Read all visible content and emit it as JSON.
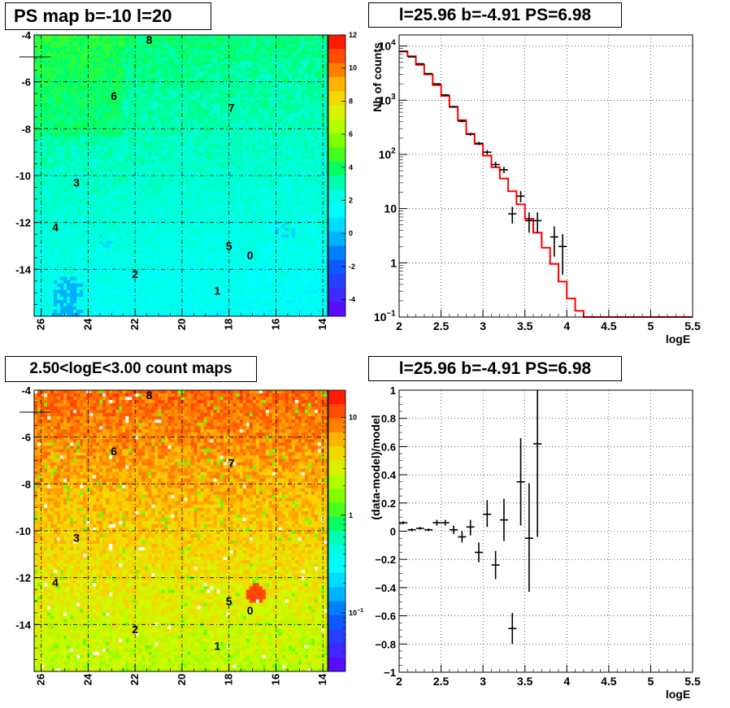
{
  "chart_data": [
    {
      "type": "heatmap",
      "title": "PS map b=-10 l=20",
      "x_ticks": [
        26,
        24,
        22,
        20,
        18,
        16,
        14
      ],
      "y_ticks": [
        -4,
        -6,
        -8,
        -10,
        -12,
        -14
      ],
      "xlim": [
        26.3,
        13.8
      ],
      "ylim": [
        -16,
        -4
      ],
      "colorbar_ticks": [
        12,
        10,
        8,
        6,
        4,
        2,
        0,
        -2,
        -4
      ],
      "colorbar_range": [
        -5,
        12
      ],
      "sources": [
        {
          "label": "8",
          "l": 21.4,
          "b": -4.2
        },
        {
          "label": "6",
          "l": 22.9,
          "b": -6.6
        },
        {
          "label": "7",
          "l": 17.9,
          "b": -7.1
        },
        {
          "label": "3",
          "l": 24.5,
          "b": -10.3
        },
        {
          "label": "4",
          "l": 25.4,
          "b": -12.2
        },
        {
          "label": "5",
          "l": 18.0,
          "b": -13.0
        },
        {
          "label": "0",
          "l": 17.1,
          "b": -13.4
        },
        {
          "label": "2",
          "l": 22.0,
          "b": -14.2
        },
        {
          "label": "1",
          "l": 18.5,
          "b": -14.9
        }
      ],
      "grid": true
    },
    {
      "type": "line",
      "title": "l=25.96 b=-4.91 PS=6.98",
      "xlabel": "logE",
      "ylabel": "Nb of counts",
      "yscale": "log",
      "xlim": [
        2,
        5.5
      ],
      "ylim": [
        0.1,
        16000
      ],
      "x_ticks": [
        2,
        2.5,
        3,
        3.5,
        4,
        4.5,
        5,
        5.5
      ],
      "x_tick_labels": [
        "2",
        "2.5",
        "3",
        "3.5",
        "4",
        "4.5",
        "5",
        "5.5"
      ],
      "y_tick_labels": [
        {
          "value": 10000,
          "base": "10",
          "exp": "4"
        },
        {
          "value": 1000,
          "base": "10",
          "exp": "3"
        },
        {
          "value": 100,
          "base": "10",
          "exp": "2"
        },
        {
          "value": 10,
          "base": "10",
          "exp": ""
        },
        {
          "value": 1,
          "base": "1",
          "exp": ""
        },
        {
          "value": 0.1,
          "base": "10",
          "exp": "−1"
        }
      ],
      "model_color": "#ff0000",
      "model_bin_edges": [
        2.0,
        2.1,
        2.2,
        2.3,
        2.4,
        2.5,
        2.6,
        2.7,
        2.8,
        2.9,
        3.0,
        3.1,
        3.2,
        3.3,
        3.4,
        3.5,
        3.6,
        3.7,
        3.8,
        3.9,
        4.0,
        4.1,
        4.2,
        4.3,
        4.4,
        4.5,
        4.6,
        4.7,
        4.8,
        4.9,
        5.0,
        5.1,
        5.2,
        5.3,
        5.4,
        5.5
      ],
      "model_values": [
        8000,
        6500,
        4500,
        3000,
        1900,
        1200,
        750,
        430,
        240,
        155,
        95,
        58,
        36,
        21,
        12,
        6.5,
        3.6,
        1.9,
        0.95,
        0.45,
        0.22,
        0.13,
        0.1,
        0.1,
        0.1,
        0.1,
        0.1,
        0.1,
        0.1,
        0.1,
        0.1,
        0.1,
        0.1,
        0.1,
        0.1
      ],
      "data_points": [
        {
          "x": 2.05,
          "y": 7900,
          "lo": 7800,
          "hi": 8000
        },
        {
          "x": 2.15,
          "y": 6300,
          "lo": 6200,
          "hi": 6400
        },
        {
          "x": 2.25,
          "y": 4700,
          "lo": 4600,
          "hi": 4800
        },
        {
          "x": 2.35,
          "y": 3100,
          "lo": 3050,
          "hi": 3150
        },
        {
          "x": 2.45,
          "y": 2000,
          "lo": 1950,
          "hi": 2050
        },
        {
          "x": 2.55,
          "y": 1250,
          "lo": 1200,
          "hi": 1300
        },
        {
          "x": 2.65,
          "y": 760,
          "lo": 730,
          "hi": 790
        },
        {
          "x": 2.75,
          "y": 410,
          "lo": 390,
          "hi": 430
        },
        {
          "x": 2.85,
          "y": 235,
          "lo": 220,
          "hi": 250
        },
        {
          "x": 2.95,
          "y": 160,
          "lo": 148,
          "hi": 172
        },
        {
          "x": 3.05,
          "y": 110,
          "lo": 100,
          "hi": 120
        },
        {
          "x": 3.15,
          "y": 65,
          "lo": 57,
          "hi": 73
        },
        {
          "x": 3.25,
          "y": 52,
          "lo": 45,
          "hi": 59
        },
        {
          "x": 3.35,
          "y": 8,
          "lo": 5.3,
          "hi": 10.8
        },
        {
          "x": 3.45,
          "y": 17,
          "lo": 13,
          "hi": 21
        },
        {
          "x": 3.55,
          "y": 6,
          "lo": 3.6,
          "hi": 8.5
        },
        {
          "x": 3.65,
          "y": 6,
          "lo": 3.6,
          "hi": 8.5
        },
        {
          "x": 3.85,
          "y": 3,
          "lo": 1.3,
          "hi": 4.7
        },
        {
          "x": 3.95,
          "y": 2,
          "lo": 0.6,
          "hi": 3.4
        }
      ],
      "grid": true
    },
    {
      "type": "heatmap",
      "title": "2.50<logE<3.00 count maps",
      "x_ticks": [
        26,
        24,
        22,
        20,
        18,
        16,
        14
      ],
      "y_ticks": [
        -4,
        -6,
        -8,
        -10,
        -12,
        -14
      ],
      "xlim": [
        26.3,
        13.8
      ],
      "ylim": [
        -16,
        -4
      ],
      "colorbar_scale": "log",
      "colorbar_tick_labels": [
        {
          "value": 10,
          "base": "10",
          "exp": ""
        },
        {
          "value": 1,
          "base": "1",
          "exp": ""
        },
        {
          "value": 0.1,
          "base": "10",
          "exp": "−1"
        }
      ],
      "sources": [
        {
          "label": "8",
          "l": 21.4,
          "b": -4.2
        },
        {
          "label": "6",
          "l": 22.9,
          "b": -6.6
        },
        {
          "label": "7",
          "l": 17.9,
          "b": -7.1
        },
        {
          "label": "3",
          "l": 24.5,
          "b": -10.3
        },
        {
          "label": "4",
          "l": 25.4,
          "b": -12.2
        },
        {
          "label": "5",
          "l": 18.0,
          "b": -13.0
        },
        {
          "label": "0",
          "l": 17.1,
          "b": -13.4
        },
        {
          "label": "2",
          "l": 22.0,
          "b": -14.2
        },
        {
          "label": "1",
          "l": 18.5,
          "b": -14.9
        }
      ],
      "grid": true
    },
    {
      "type": "scatter",
      "title": "l=25.96 b=-4.91 PS=6.98",
      "xlabel": "logE",
      "ylabel": "(data-model)/model",
      "xlim": [
        2,
        5.5
      ],
      "ylim": [
        -1,
        1
      ],
      "x_ticks": [
        2,
        2.5,
        3,
        3.5,
        4,
        4.5,
        5,
        5.5
      ],
      "x_tick_labels": [
        "2",
        "2.5",
        "3",
        "3.5",
        "4",
        "4.5",
        "5",
        "5.5"
      ],
      "y_ticks": [
        1,
        0.8,
        0.6,
        0.4,
        0.2,
        0,
        -0.2,
        -0.4,
        -0.6,
        -0.8,
        -1
      ],
      "y_tick_labels": [
        "1",
        "0.8",
        "0.6",
        "0.4",
        "0.2",
        "0",
        "−0.2",
        "−0.4",
        "−0.6",
        "−0.8",
        "−1"
      ],
      "data_points": [
        {
          "x": 2.05,
          "y": 0.06,
          "lo": 0.05,
          "hi": 0.07
        },
        {
          "x": 2.15,
          "y": 0.01,
          "lo": 0.0,
          "hi": 0.02
        },
        {
          "x": 2.25,
          "y": 0.02,
          "lo": 0.01,
          "hi": 0.03
        },
        {
          "x": 2.35,
          "y": 0.01,
          "lo": 0.0,
          "hi": 0.02
        },
        {
          "x": 2.45,
          "y": 0.06,
          "lo": 0.04,
          "hi": 0.08
        },
        {
          "x": 2.55,
          "y": 0.06,
          "lo": 0.04,
          "hi": 0.08
        },
        {
          "x": 2.65,
          "y": 0.01,
          "lo": -0.02,
          "hi": 0.04
        },
        {
          "x": 2.75,
          "y": -0.04,
          "lo": -0.08,
          "hi": 0.0
        },
        {
          "x": 2.85,
          "y": 0.03,
          "lo": -0.03,
          "hi": 0.08
        },
        {
          "x": 2.95,
          "y": -0.15,
          "lo": -0.22,
          "hi": -0.08
        },
        {
          "x": 3.05,
          "y": 0.12,
          "lo": 0.03,
          "hi": 0.22
        },
        {
          "x": 3.15,
          "y": -0.24,
          "lo": -0.34,
          "hi": -0.14
        },
        {
          "x": 3.25,
          "y": 0.08,
          "lo": -0.07,
          "hi": 0.23
        },
        {
          "x": 3.35,
          "y": -0.69,
          "lo": -0.8,
          "hi": -0.58
        },
        {
          "x": 3.45,
          "y": 0.35,
          "lo": 0.04,
          "hi": 0.66
        },
        {
          "x": 3.55,
          "y": -0.05,
          "lo": -0.43,
          "hi": 0.34
        },
        {
          "x": 3.65,
          "y": 0.62,
          "lo": -0.04,
          "hi": 1.0
        }
      ],
      "grid": true
    }
  ]
}
